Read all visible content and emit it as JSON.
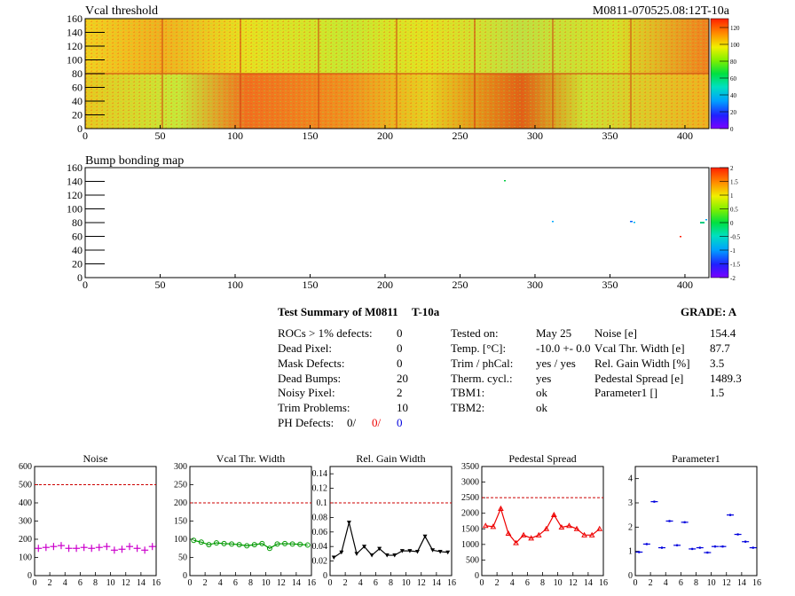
{
  "header": {
    "module_label": "M0811-070525.08:12T-10a"
  },
  "colors": {
    "pink": "#cc00cc",
    "green": "#009900",
    "black": "#000000",
    "red": "#ee0000",
    "blue": "#0000dd",
    "ref_line": "#cc0000"
  },
  "maps": [
    {
      "title": "Vcal threshold",
      "x_ticks": [
        "0",
        "50",
        "100",
        "150",
        "200",
        "250",
        "300",
        "350",
        "400"
      ],
      "y_ticks": [
        "0",
        "20",
        "40",
        "60",
        "80",
        "100",
        "120",
        "140",
        "160"
      ],
      "color_ticks": [
        "0",
        "20",
        "40",
        "60",
        "80",
        "100",
        "120"
      ]
    },
    {
      "title": "Bump bonding map",
      "x_ticks": [
        "0",
        "50",
        "100",
        "150",
        "200",
        "250",
        "300",
        "350",
        "400"
      ],
      "y_ticks": [
        "0",
        "20",
        "40",
        "60",
        "80",
        "100",
        "120",
        "140",
        "160"
      ],
      "color_ticks": [
        "-2",
        "-1.5",
        "-1",
        "-0.5",
        "0",
        "0.5",
        "1",
        "1.5",
        "2"
      ]
    }
  ],
  "summary": {
    "title": "Test Summary of M0811",
    "temp_label": "T-10a",
    "grade": "GRADE:  A",
    "defects": [
      {
        "label": "ROCs > 1% defects:",
        "value": "0"
      },
      {
        "label": "Dead Pixel:",
        "value": "0"
      },
      {
        "label": "Mask Defects:",
        "value": "0"
      },
      {
        "label": "Dead Bumps:",
        "value": "20"
      },
      {
        "label": "Noisy Pixel:",
        "value": "2"
      },
      {
        "label": "Trim Problems:",
        "value": "10"
      }
    ],
    "ph_defects": {
      "label": "PH Defects:",
      "v1": "0/",
      "v2": "0/",
      "v3": "0"
    },
    "conditions": [
      {
        "label": "Tested on:",
        "value": "May 25"
      },
      {
        "label": "Temp. [°C]:",
        "value": "-10.0 +- 0.0"
      },
      {
        "label": "Trim / phCal:",
        "value": "yes / yes"
      },
      {
        "label": "Therm. cycl.:",
        "value": "yes"
      },
      {
        "label": "TBM1:",
        "value": "ok"
      },
      {
        "label": "TBM2:",
        "value": "ok"
      }
    ],
    "parameters": [
      {
        "label": "Noise [e]",
        "value": "154.4"
      },
      {
        "label": "Vcal Thr. Width [e]",
        "value": "87.7"
      },
      {
        "label": "Rel. Gain Width [%]",
        "value": "3.5"
      },
      {
        "label": "Pedestal Spread [e]",
        "value": "1489.3"
      },
      {
        "label": "Parameter1 []",
        "value": "1.5"
      }
    ]
  },
  "chart_data": [
    {
      "type": "scatter",
      "title": "Noise",
      "x": [
        0,
        1,
        2,
        3,
        4,
        5,
        6,
        7,
        8,
        9,
        10,
        11,
        12,
        13,
        14,
        15
      ],
      "values": [
        150,
        155,
        160,
        165,
        150,
        150,
        155,
        150,
        155,
        160,
        140,
        145,
        160,
        150,
        140,
        160
      ],
      "xlim": [
        0,
        16
      ],
      "ylim": [
        0,
        600
      ],
      "reference": 500,
      "y_ticks": [
        0,
        100,
        200,
        300,
        400,
        500,
        600
      ],
      "x_ticks": [
        0,
        2,
        4,
        6,
        8,
        10,
        12,
        14,
        16
      ],
      "color": "#cc00cc",
      "marker": "plus",
      "line": false
    },
    {
      "type": "line",
      "title": "Vcal Thr. Width",
      "x": [
        0,
        1,
        2,
        3,
        4,
        5,
        6,
        7,
        8,
        9,
        10,
        11,
        12,
        13,
        14,
        15
      ],
      "values": [
        97,
        92,
        85,
        90,
        88,
        87,
        85,
        82,
        85,
        88,
        75,
        87,
        88,
        87,
        86,
        84
      ],
      "xlim": [
        0,
        16
      ],
      "ylim": [
        0,
        300
      ],
      "reference": 200,
      "y_ticks": [
        0,
        50,
        100,
        150,
        200,
        250,
        300
      ],
      "x_ticks": [
        0,
        2,
        4,
        6,
        8,
        10,
        12,
        14,
        16
      ],
      "color": "#009900",
      "marker": "circle",
      "line": true
    },
    {
      "type": "line",
      "title": "Rel. Gain Width",
      "x": [
        0,
        1,
        2,
        3,
        4,
        5,
        6,
        7,
        8,
        9,
        10,
        11,
        12,
        13,
        14,
        15
      ],
      "values": [
        0.025,
        0.032,
        0.073,
        0.03,
        0.04,
        0.028,
        0.037,
        0.028,
        0.028,
        0.034,
        0.034,
        0.033,
        0.054,
        0.035,
        0.033,
        0.032
      ],
      "xlim": [
        0,
        16
      ],
      "ylim": [
        0,
        0.15
      ],
      "reference": 0.1,
      "y_ticks": [
        "0",
        "0.02",
        "0.04",
        "0.06",
        "0.08",
        "0.1",
        "0.12",
        "0.14"
      ],
      "y_tick_values": [
        0,
        0.02,
        0.04,
        0.06,
        0.08,
        0.1,
        0.12,
        0.14
      ],
      "x_ticks": [
        0,
        2,
        4,
        6,
        8,
        10,
        12,
        14,
        16
      ],
      "color": "#000000",
      "marker": "triangle",
      "line": true
    },
    {
      "type": "line",
      "title": "Pedestal Spread",
      "x": [
        0,
        1,
        2,
        3,
        4,
        5,
        6,
        7,
        8,
        9,
        10,
        11,
        12,
        13,
        14,
        15
      ],
      "values": [
        1600,
        1570,
        2150,
        1350,
        1050,
        1300,
        1200,
        1300,
        1500,
        1950,
        1550,
        1600,
        1500,
        1300,
        1300,
        1500
      ],
      "xlim": [
        0,
        16
      ],
      "ylim": [
        0,
        3500
      ],
      "reference": 2500,
      "y_ticks": [
        0,
        500,
        1000,
        1500,
        2000,
        2500,
        3000,
        3500
      ],
      "x_ticks": [
        0,
        2,
        4,
        6,
        8,
        10,
        12,
        14,
        16
      ],
      "color": "#ee0000",
      "marker": "triangle-up",
      "line": true
    },
    {
      "type": "scatter",
      "title": "Parameter1",
      "x": [
        0,
        1,
        2,
        3,
        4,
        5,
        6,
        7,
        8,
        9,
        10,
        11,
        12,
        13,
        14,
        15
      ],
      "values": [
        0.97,
        1.3,
        3.05,
        1.15,
        2.25,
        1.25,
        2.2,
        1.1,
        1.15,
        0.95,
        1.2,
        1.2,
        2.5,
        1.7,
        1.4,
        1.15
      ],
      "xlim": [
        0,
        16
      ],
      "ylim": [
        0,
        4.5
      ],
      "y_ticks": [
        0,
        1,
        2,
        3,
        4
      ],
      "x_ticks": [
        0,
        2,
        4,
        6,
        8,
        10,
        12,
        14,
        16
      ],
      "color": "#0000dd",
      "marker": "dash",
      "line": false
    }
  ]
}
